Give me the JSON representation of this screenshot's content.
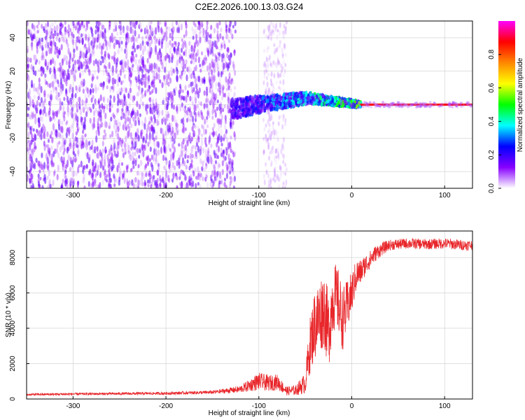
{
  "title": "C2E2.2026.100.13.03.G24",
  "colors": {
    "snr_line": "#e8262a",
    "grid": "#cccccc",
    "axis": "#000000",
    "spectrum_peak": "#e8262a"
  },
  "chart_data": [
    {
      "type": "heatmap",
      "name": "spectrogram",
      "title": "C2E2.2026.100.13.03.G24",
      "xlabel": "Height of straight line (km)",
      "ylabel": "Frequency (Hz)",
      "xlim": [
        -350,
        130
      ],
      "ylim": [
        -50,
        50
      ],
      "xticks": [
        -300,
        -200,
        -100,
        0,
        100
      ],
      "yticks": [
        -40,
        -20,
        0,
        20,
        40
      ],
      "colorbar": {
        "label": "Normalized spectral amplitude",
        "range": [
          0,
          1
        ],
        "ticks": [
          "0.0",
          "0.2",
          "0.4",
          "0.6",
          "0.8"
        ],
        "colormap": [
          "#ffffff",
          "#8800ff",
          "#0000ff",
          "#00ffff",
          "#00ff00",
          "#ffff00",
          "#ff8800",
          "#ff0000",
          "#ff00ff"
        ]
      },
      "regions": [
        {
          "description": "noise",
          "x_range": [
            -350,
            -125
          ],
          "freq_range": [
            -50,
            50
          ],
          "amplitude": 0.1
        },
        {
          "description": "sparse noise",
          "x_range": [
            -95,
            -70
          ],
          "freq_range": [
            -50,
            50
          ],
          "amplitude": 0.05
        },
        {
          "description": "emerging signal",
          "x_range": [
            -130,
            10
          ],
          "freq_center": [
            -3,
            0,
            2,
            4,
            2,
            0
          ],
          "amplitude": 0.4
        },
        {
          "description": "steady carrier",
          "x_range": [
            10,
            130
          ],
          "freq_center": 0,
          "amplitude": 0.85
        }
      ]
    },
    {
      "type": "line",
      "name": "snr",
      "xlabel": "Height of straight line (km)",
      "ylabel": "SNR (10 * v/v)",
      "xlim": [
        -350,
        130
      ],
      "ylim": [
        0,
        9500
      ],
      "xticks": [
        -300,
        -200,
        -100,
        0,
        100
      ],
      "yticks": [
        0,
        2000,
        4000,
        6000,
        8000
      ],
      "series": [
        {
          "name": "SNR",
          "x": [
            -350,
            -300,
            -250,
            -200,
            -150,
            -120,
            -100,
            -90,
            -80,
            -70,
            -60,
            -50,
            -45,
            -40,
            -35,
            -30,
            -25,
            -20,
            -15,
            -10,
            -5,
            0,
            5,
            10,
            15,
            20,
            25,
            30,
            40,
            50,
            60,
            80,
            100,
            120,
            130
          ],
          "y": [
            250,
            280,
            300,
            320,
            380,
            550,
            1000,
            900,
            950,
            450,
            500,
            900,
            3000,
            4200,
            4600,
            5200,
            3800,
            5800,
            5600,
            4500,
            5200,
            6000,
            7000,
            7200,
            7600,
            7900,
            8200,
            8400,
            8700,
            8750,
            8800,
            8750,
            8800,
            8700,
            8700
          ],
          "noise_amplitude": [
            60,
            70,
            70,
            80,
            100,
            200,
            500,
            450,
            450,
            250,
            300,
            600,
            1600,
            2000,
            2200,
            2200,
            2200,
            2000,
            1900,
            1800,
            1500,
            1200,
            900,
            700,
            600,
            500,
            450,
            400,
            300,
            300,
            300,
            300,
            300,
            300,
            300
          ]
        }
      ]
    }
  ]
}
